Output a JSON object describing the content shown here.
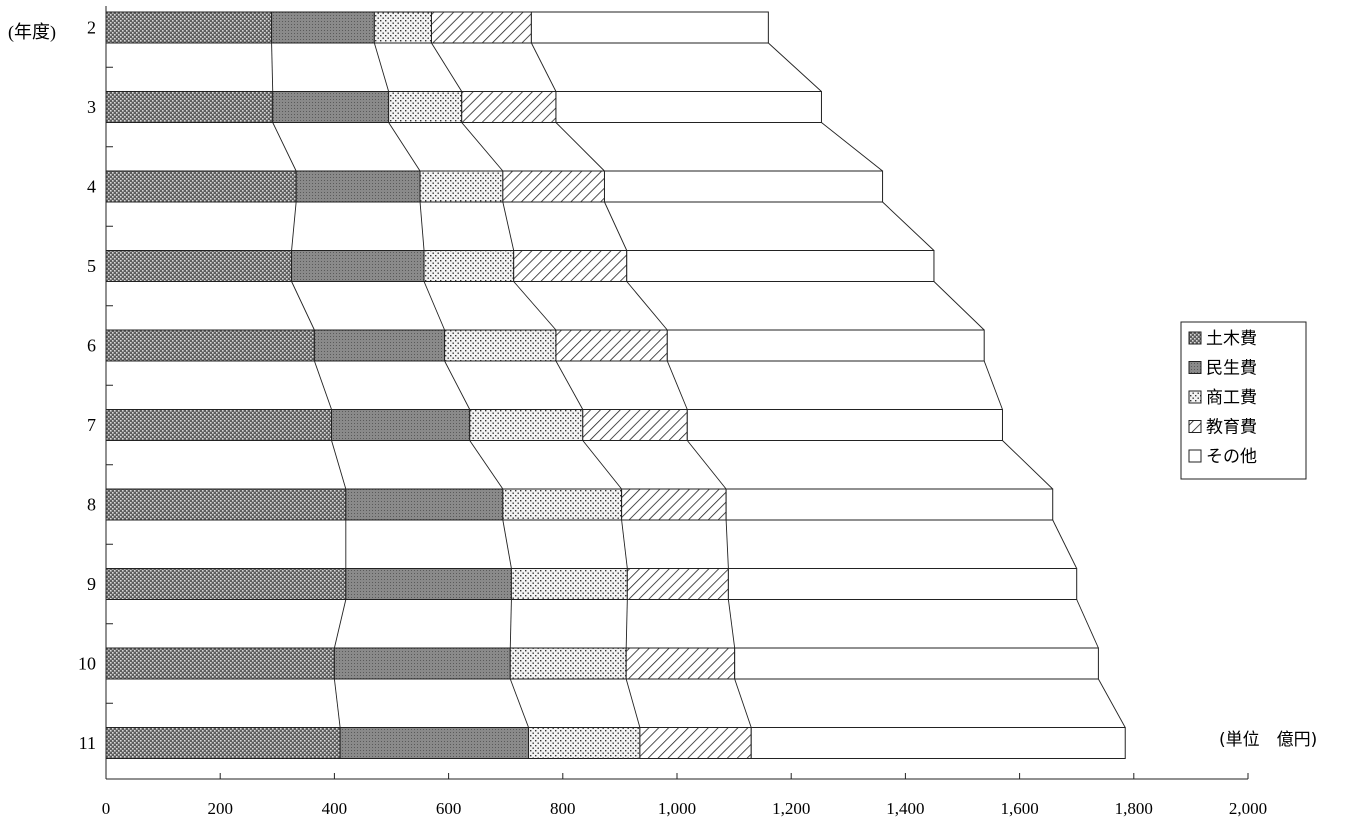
{
  "chart_data": {
    "type": "bar",
    "orientation": "horizontal",
    "stacked": true,
    "y_axis_title": "(年度)",
    "unit_label": "(単位　億円)",
    "categories": [
      "2",
      "3",
      "4",
      "5",
      "6",
      "7",
      "8",
      "9",
      "10",
      "11"
    ],
    "series": [
      {
        "name": "土木費",
        "values": [
          290,
          292,
          333,
          325,
          365,
          395,
          420,
          420,
          400,
          410
        ]
      },
      {
        "name": "民生費",
        "values": [
          180,
          203,
          217,
          232,
          228,
          242,
          275,
          290,
          308,
          330
        ]
      },
      {
        "name": "商工費",
        "values": [
          100,
          128,
          145,
          157,
          195,
          198,
          208,
          203,
          203,
          195
        ]
      },
      {
        "name": "教育費",
        "values": [
          175,
          165,
          178,
          198,
          195,
          183,
          183,
          177,
          190,
          195
        ]
      },
      {
        "name": "その他",
        "values": [
          415,
          465,
          487,
          538,
          555,
          552,
          572,
          610,
          637,
          655
        ]
      }
    ],
    "xlim": [
      0,
      2000
    ],
    "x_ticks": [
      "0",
      "200",
      "400",
      "600",
      "800",
      "1,000",
      "1,200",
      "1,400",
      "1,600",
      "1,800",
      "2,000"
    ],
    "legend_position": "right",
    "connector_lines": true
  }
}
